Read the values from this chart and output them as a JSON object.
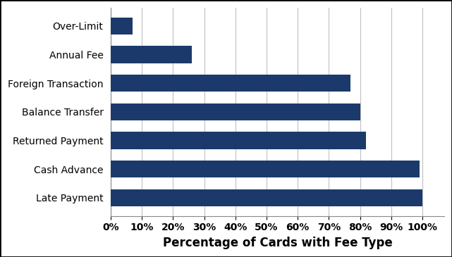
{
  "categories": [
    "Late Payment",
    "Cash Advance",
    "Returned Payment",
    "Balance Transfer",
    "Foreign Transaction",
    "Annual Fee",
    "Over-Limit"
  ],
  "values": [
    100,
    99,
    82,
    80,
    77,
    26,
    7
  ],
  "bar_color": "#1b3a6b",
  "xlabel": "Percentage of Cards with Fee Type",
  "xlim": [
    0,
    107
  ],
  "xtick_vals": [
    0,
    10,
    20,
    30,
    40,
    50,
    60,
    70,
    80,
    90,
    100
  ],
  "xlabel_fontsize": 12,
  "tick_fontsize": 10,
  "bar_height": 0.6,
  "figsize": [
    6.41,
    3.65
  ],
  "dpi": 100,
  "background_color": "#ffffff",
  "grid_color": "#c0c0c0",
  "border_color": "#000000"
}
